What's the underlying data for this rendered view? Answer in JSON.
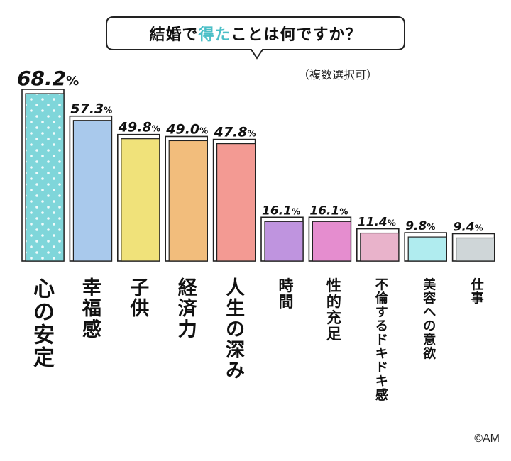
{
  "title": {
    "prefix": "結婚で",
    "highlight": "得た",
    "suffix": "ことは何ですか？"
  },
  "subtitle": "（複数選択可）",
  "credit": "©AM",
  "chart_data": {
    "type": "bar",
    "categories": [
      "心の安定",
      "幸福感",
      "子供",
      "経済力",
      "人生の深み",
      "時間",
      "性的充足",
      "不倫するドキドキ感",
      "美容への意欲",
      "仕事"
    ],
    "value_labels": [
      "68.2",
      "57.3",
      "49.8",
      "49.0",
      "47.8",
      "16.1",
      "16.1",
      "11.4",
      "9.8",
      "9.4"
    ],
    "unit": "%",
    "values": [
      68.2,
      57.3,
      49.8,
      49.0,
      47.8,
      16.1,
      16.1,
      11.4,
      9.8,
      9.4
    ],
    "colors": [
      "#7fd6da",
      "#a9c9ec",
      "#f0e27a",
      "#f2bd7c",
      "#f39a93",
      "#bf94df",
      "#e58dcf",
      "#e9b3cb",
      "#b0ecef",
      "#cfd6d8"
    ],
    "ylim": [
      0,
      68.2
    ],
    "grid": false
  }
}
